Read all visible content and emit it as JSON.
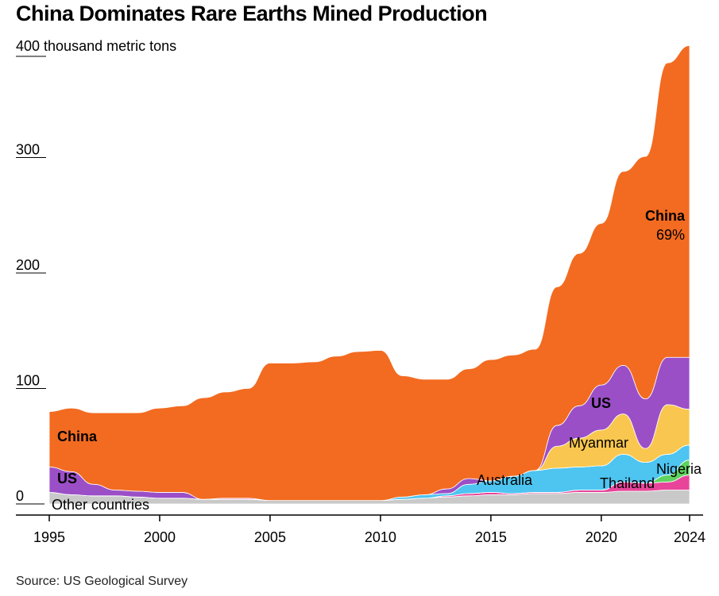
{
  "title": "China Dominates Rare Earths Mined Production",
  "source": "Source: US Geological Survey",
  "chart_data": {
    "type": "area",
    "title": "China Dominates Rare Earths Mined Production",
    "unit_label": "400 thousand metric tons",
    "xlim": [
      1995,
      2024
    ],
    "ylim": [
      0,
      400
    ],
    "x_ticks": [
      "1995",
      "2000",
      "2005",
      "2010",
      "2015",
      "2020",
      "2024"
    ],
    "y_ticks": [
      "0",
      "100",
      "200",
      "300"
    ],
    "x": [
      1995,
      1996,
      1997,
      1998,
      1999,
      2000,
      2001,
      2002,
      2003,
      2004,
      2005,
      2006,
      2007,
      2008,
      2009,
      2010,
      2011,
      2012,
      2013,
      2014,
      2015,
      2016,
      2017,
      2018,
      2019,
      2020,
      2021,
      2022,
      2023,
      2024
    ],
    "series": [
      {
        "name": "Other countries",
        "color": "#c9c9c9",
        "values": [
          10,
          8,
          7,
          7,
          6,
          5,
          5,
          4,
          4,
          4,
          3,
          3,
          3,
          3,
          3,
          3,
          4,
          5,
          6,
          7,
          8,
          8,
          9,
          9,
          10,
          10,
          11,
          11,
          12,
          12
        ]
      },
      {
        "name": "Thailand",
        "color": "#e8459a",
        "values": [
          0,
          0,
          0,
          0,
          0,
          0,
          0,
          0,
          1,
          1,
          0,
          0,
          0,
          0,
          0,
          0,
          0,
          0,
          1,
          2,
          2,
          1,
          1,
          1,
          2,
          2,
          8,
          7,
          7,
          13
        ]
      },
      {
        "name": "Nigeria",
        "color": "#5fd35f",
        "values": [
          0,
          0,
          0,
          0,
          0,
          0,
          0,
          0,
          0,
          0,
          0,
          0,
          0,
          0,
          0,
          0,
          0,
          0,
          0,
          0,
          0,
          0,
          0,
          0,
          0,
          0,
          0,
          0,
          6,
          13
        ]
      },
      {
        "name": "Australia",
        "color": "#4ec4f0",
        "values": [
          0,
          0,
          0,
          0,
          0,
          0,
          0,
          0,
          0,
          0,
          0,
          0,
          0,
          0,
          0,
          0,
          2,
          3,
          2,
          8,
          10,
          15,
          19,
          21,
          20,
          21,
          24,
          18,
          18,
          13
        ]
      },
      {
        "name": "Myanmar",
        "color": "#f9c74f",
        "values": [
          0,
          0,
          0,
          0,
          0,
          0,
          0,
          0,
          0,
          0,
          0,
          0,
          0,
          0,
          0,
          0,
          0,
          0,
          0,
          0,
          0,
          0,
          0,
          19,
          25,
          31,
          35,
          12,
          43,
          31
        ]
      },
      {
        "name": "US",
        "color": "#9b4fc7",
        "values": [
          22,
          20,
          10,
          5,
          5,
          5,
          5,
          0,
          0,
          0,
          0,
          0,
          0,
          0,
          0,
          0,
          0,
          0,
          4,
          5,
          0,
          0,
          0,
          18,
          28,
          39,
          42,
          43,
          41,
          45
        ]
      },
      {
        "name": "China",
        "color": "#f26b21",
        "values": [
          48,
          55,
          62,
          67,
          68,
          73,
          75,
          88,
          92,
          95,
          119,
          119,
          120,
          125,
          129,
          130,
          105,
          100,
          95,
          95,
          105,
          105,
          105,
          120,
          132,
          140,
          168,
          210,
          255,
          270
        ]
      }
    ],
    "annotations": [
      {
        "label": "China",
        "series": "China"
      },
      {
        "label": "69%",
        "series": "China"
      },
      {
        "label": "US",
        "series": "US"
      },
      {
        "label": "Myanmar",
        "series": "Myanmar"
      },
      {
        "label": "Australia",
        "series": "Australia"
      },
      {
        "label": "Thailand",
        "series": "Thailand"
      },
      {
        "label": "Nigeria",
        "series": "Nigeria"
      },
      {
        "label": "Other countries",
        "series": "Other countries"
      }
    ]
  }
}
